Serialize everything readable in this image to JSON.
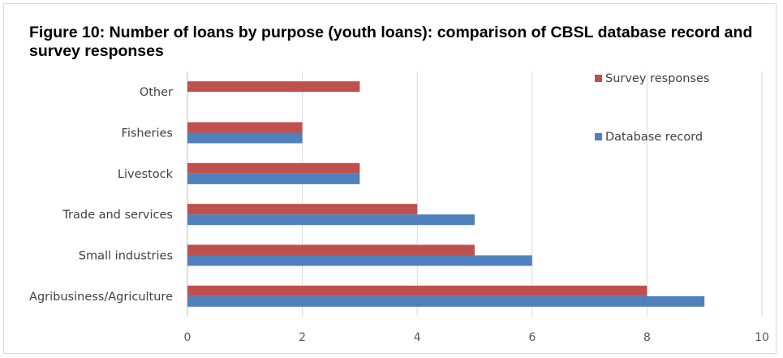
{
  "title": "Figure 10: Number of loans by purpose (youth loans): comparison of CBSL database record and survey responses",
  "chart_data": {
    "type": "bar",
    "orientation": "horizontal",
    "title": "Figure 10: Number of loans by purpose (youth loans): comparison of CBSL database record and survey responses",
    "xlabel": "",
    "ylabel": "",
    "categories": [
      "Agribusiness/Agriculture",
      "Small industries",
      "Trade and services",
      "Livestock",
      "Fisheries",
      "Other"
    ],
    "series": [
      {
        "name": "Survey responses",
        "color": "#c0504d",
        "values": [
          8,
          5,
          4,
          3,
          2,
          3
        ]
      },
      {
        "name": "Database record",
        "color": "#4f81bd",
        "values": [
          9,
          6,
          5,
          3,
          2,
          null
        ]
      }
    ],
    "xlim": [
      0,
      10
    ],
    "xticks": [
      0,
      2,
      4,
      6,
      8,
      10
    ],
    "grid": "vertical",
    "legend_position": "top-right"
  }
}
